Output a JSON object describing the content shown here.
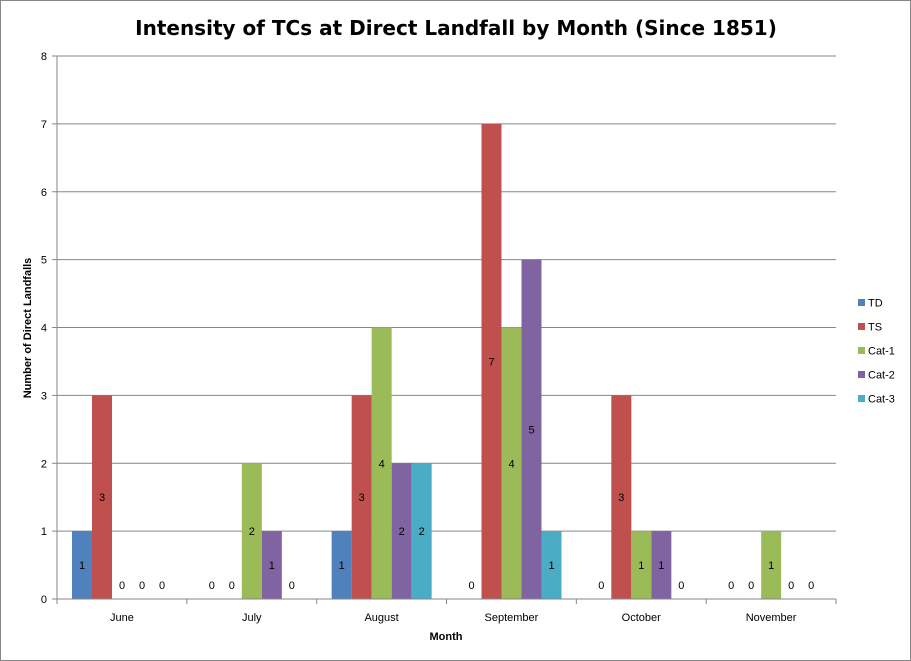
{
  "chart_data": {
    "type": "bar",
    "title": "Intensity of TCs at Direct Landfall by Month (Since 1851)",
    "xlabel": "Month",
    "ylabel": "Number of Direct Landfalls",
    "ylim": [
      0,
      8
    ],
    "yticks": [
      "0",
      "1",
      "2",
      "3",
      "4",
      "5",
      "6",
      "7",
      "8"
    ],
    "grid": true,
    "legend_position": "right",
    "categories": [
      "June",
      "July",
      "August",
      "September",
      "October",
      "November"
    ],
    "series": [
      {
        "name": "TD",
        "color": "#4F81BD",
        "values": [
          1,
          0,
          1,
          0,
          0,
          0
        ],
        "labels": [
          "1",
          "0",
          "1",
          "0",
          "0",
          "0"
        ]
      },
      {
        "name": "TS",
        "color": "#C0504D",
        "values": [
          3,
          0,
          3,
          7,
          3,
          0
        ],
        "labels": [
          "3",
          "0",
          "3",
          "7",
          "3",
          "0"
        ]
      },
      {
        "name": "Cat-1",
        "color": "#9BBB59",
        "values": [
          0,
          2,
          4,
          4,
          1,
          1
        ],
        "labels": [
          "0",
          "2",
          "4",
          "4",
          "1",
          "1"
        ]
      },
      {
        "name": "Cat-2",
        "color": "#8064A2",
        "values": [
          0,
          1,
          2,
          5,
          1,
          0
        ],
        "labels": [
          "0",
          "1",
          "2",
          "5",
          "1",
          "0"
        ]
      },
      {
        "name": "Cat-3",
        "color": "#4BACC6",
        "values": [
          0,
          0,
          2,
          1,
          0,
          0
        ],
        "labels": [
          "0",
          "0",
          "2",
          "1",
          "0",
          "0"
        ]
      }
    ]
  }
}
